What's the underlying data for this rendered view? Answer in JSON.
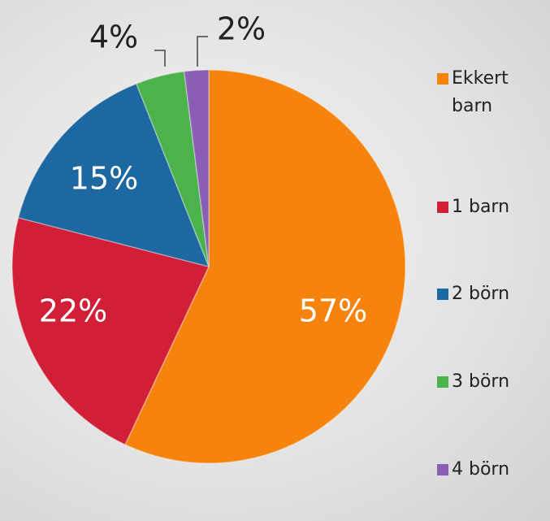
{
  "chart_data": {
    "type": "pie",
    "categories": [
      "Ekkert barn",
      "1 barn",
      "2 börn",
      "3 börn",
      "4 börn"
    ],
    "values": [
      57,
      22,
      15,
      4,
      2
    ],
    "value_labels": [
      "57%",
      "22%",
      "15%",
      "4%",
      "2%"
    ],
    "colors": [
      "#f7830f",
      "#d01f36",
      "#1d68a1",
      "#4cb24c",
      "#8b5eb6"
    ],
    "legend": "right"
  }
}
